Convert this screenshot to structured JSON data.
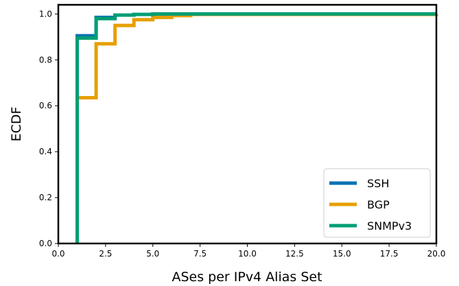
{
  "chart_data": {
    "type": "line",
    "step": true,
    "xlabel": "ASes per IPv4 Alias Set",
    "ylabel": "ECDF",
    "xlim": [
      0,
      20
    ],
    "ylim": [
      0,
      1.04
    ],
    "xticks": [
      0.0,
      2.5,
      5.0,
      7.5,
      10.0,
      12.5,
      15.0,
      17.5,
      20.0
    ],
    "xtick_labels": [
      "0.0",
      "2.5",
      "5.0",
      "7.5",
      "10.0",
      "12.5",
      "15.0",
      "17.5",
      "20.0"
    ],
    "yticks": [
      0.0,
      0.2,
      0.4,
      0.6,
      0.8,
      1.0
    ],
    "ytick_labels": [
      "0.0",
      "0.2",
      "0.4",
      "0.6",
      "0.8",
      "1.0"
    ],
    "grid": false,
    "legend_position": "bottom-right",
    "series": [
      {
        "name": "SSH",
        "color": "#0072b2",
        "x": [
          1,
          2,
          3,
          4,
          5,
          20
        ],
        "y": [
          0.905,
          0.985,
          0.995,
          0.998,
          1.0,
          1.0
        ]
      },
      {
        "name": "BGP",
        "color": "#e69f00",
        "x": [
          1,
          2,
          3,
          4,
          5,
          6,
          7,
          20
        ],
        "y": [
          0.635,
          0.87,
          0.95,
          0.975,
          0.985,
          0.993,
          0.998,
          1.0
        ]
      },
      {
        "name": "SNMPv3",
        "color": "#009e73",
        "x": [
          1,
          2,
          3,
          4,
          5,
          20
        ],
        "y": [
          0.895,
          0.98,
          0.995,
          0.998,
          1.0,
          1.0
        ]
      }
    ]
  }
}
